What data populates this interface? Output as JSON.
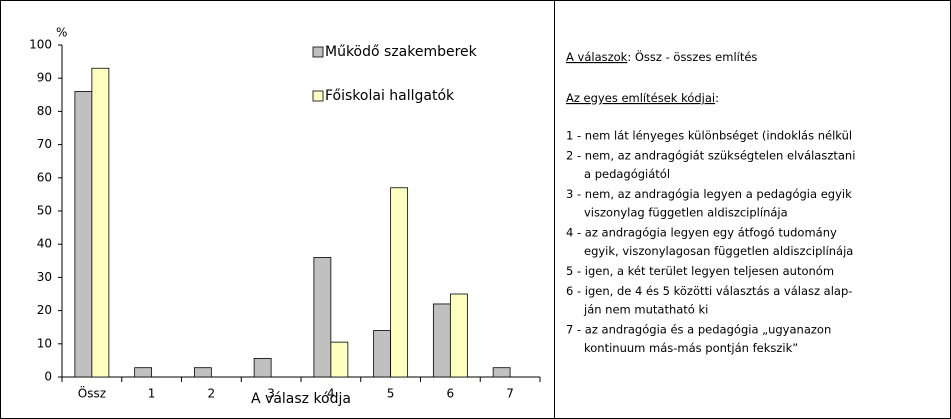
{
  "chart_data": {
    "type": "bar",
    "y_label": "%",
    "x_label": "A válasz kódja",
    "categories": [
      "Össz",
      "1",
      "2",
      "3",
      "4",
      "5",
      "6",
      "7"
    ],
    "series": [
      {
        "name": "Működő szakemberek",
        "color": "#c0c0c0",
        "values": [
          86,
          2.8,
          2.8,
          5.6,
          36,
          14,
          22,
          2.8
        ]
      },
      {
        "name": "Főiskolai hallgatók",
        "color": "#ffffc0",
        "values": [
          93,
          0,
          0,
          0,
          10.5,
          57,
          25,
          0
        ]
      }
    ],
    "ylim": [
      0,
      100
    ],
    "yticks": [
      0,
      10,
      20,
      30,
      40,
      50,
      60,
      70,
      80,
      90,
      100
    ],
    "grid": false,
    "legend": "upper right"
  },
  "panel": {
    "heading1": {
      "label": "A válaszok",
      "text": ": Össz - összes említés"
    },
    "heading2": {
      "label": "Az egyes említések kódjai",
      "text": ":"
    },
    "items": [
      [
        "1 - nem lát lényeges különbséget (indoklás nélkül"
      ],
      [
        "2 - nem, az andragógiát szükségtelen elválasztani",
        "a pedagógiától"
      ],
      [
        "3 - nem, az andragógia legyen a pedagógia egyik",
        "viszonylag független aldiszciplínája"
      ],
      [
        "4 - az andragógia legyen egy átfogó tudomány",
        "egyik, viszonylagosan független aldiszciplínája"
      ],
      [
        "5 - igen, a két terület legyen teljesen autonóm"
      ],
      [
        "6 - igen, de 4 és 5 közötti választás a válasz alap-",
        "ján nem mutatható ki"
      ],
      [
        "7 - az andragógia és a pedagógia „ugyanazon",
        "kontinuum más-más pontján fekszik”"
      ]
    ]
  }
}
